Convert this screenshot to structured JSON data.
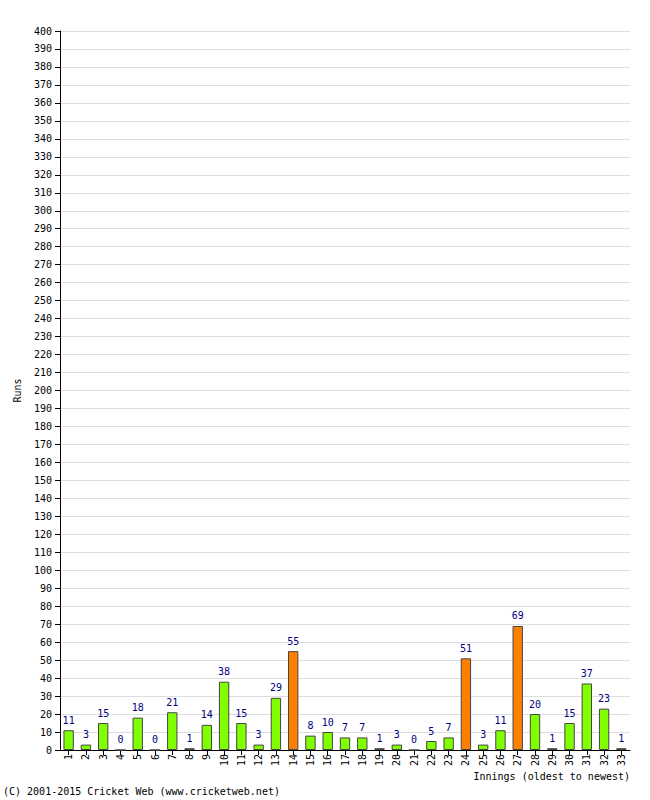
{
  "chart_data": {
    "type": "bar",
    "x_label": "Innings (oldest to newest)",
    "y_label": "Runs",
    "annotations": [
      "(C) 2001-2015 Cricket Web (www.cricketweb.net)"
    ],
    "categories": [
      "1",
      "2",
      "3",
      "4",
      "5",
      "6",
      "7",
      "8",
      "9",
      "10",
      "11",
      "12",
      "13",
      "14",
      "15",
      "16",
      "17",
      "18",
      "19",
      "20",
      "21",
      "22",
      "23",
      "24",
      "25",
      "26",
      "27",
      "28",
      "29",
      "30",
      "31",
      "32",
      "33"
    ],
    "values": [
      11,
      3,
      15,
      0,
      18,
      0,
      21,
      1,
      14,
      38,
      15,
      3,
      29,
      55,
      8,
      10,
      7,
      7,
      1,
      3,
      0,
      5,
      7,
      51,
      3,
      11,
      69,
      20,
      1,
      15,
      37,
      23,
      1
    ],
    "colors": [
      "#80ff00",
      "#80ff00",
      "#80ff00",
      "#80ff00",
      "#80ff00",
      "#80ff00",
      "#80ff00",
      "#80ff00",
      "#80ff00",
      "#80ff00",
      "#80ff00",
      "#80ff00",
      "#80ff00",
      "#ff8000",
      "#80ff00",
      "#80ff00",
      "#80ff00",
      "#80ff00",
      "#80ff00",
      "#80ff00",
      "#80ff00",
      "#80ff00",
      "#80ff00",
      "#ff8000",
      "#80ff00",
      "#80ff00",
      "#ff8000",
      "#80ff00",
      "#80ff00",
      "#80ff00",
      "#80ff00",
      "#80ff00",
      "#80ff00"
    ],
    "ylim": [
      0,
      400
    ],
    "yticks": [
      0,
      10,
      20,
      30,
      40,
      50,
      60,
      70,
      80,
      90,
      100,
      110,
      120,
      130,
      140,
      150,
      160,
      170,
      180,
      190,
      200,
      210,
      220,
      230,
      240,
      250,
      260,
      270,
      280,
      290,
      300,
      310,
      320,
      330,
      340,
      350,
      360,
      370,
      380,
      390,
      400
    ],
    "grid": true,
    "data_labels": true
  }
}
